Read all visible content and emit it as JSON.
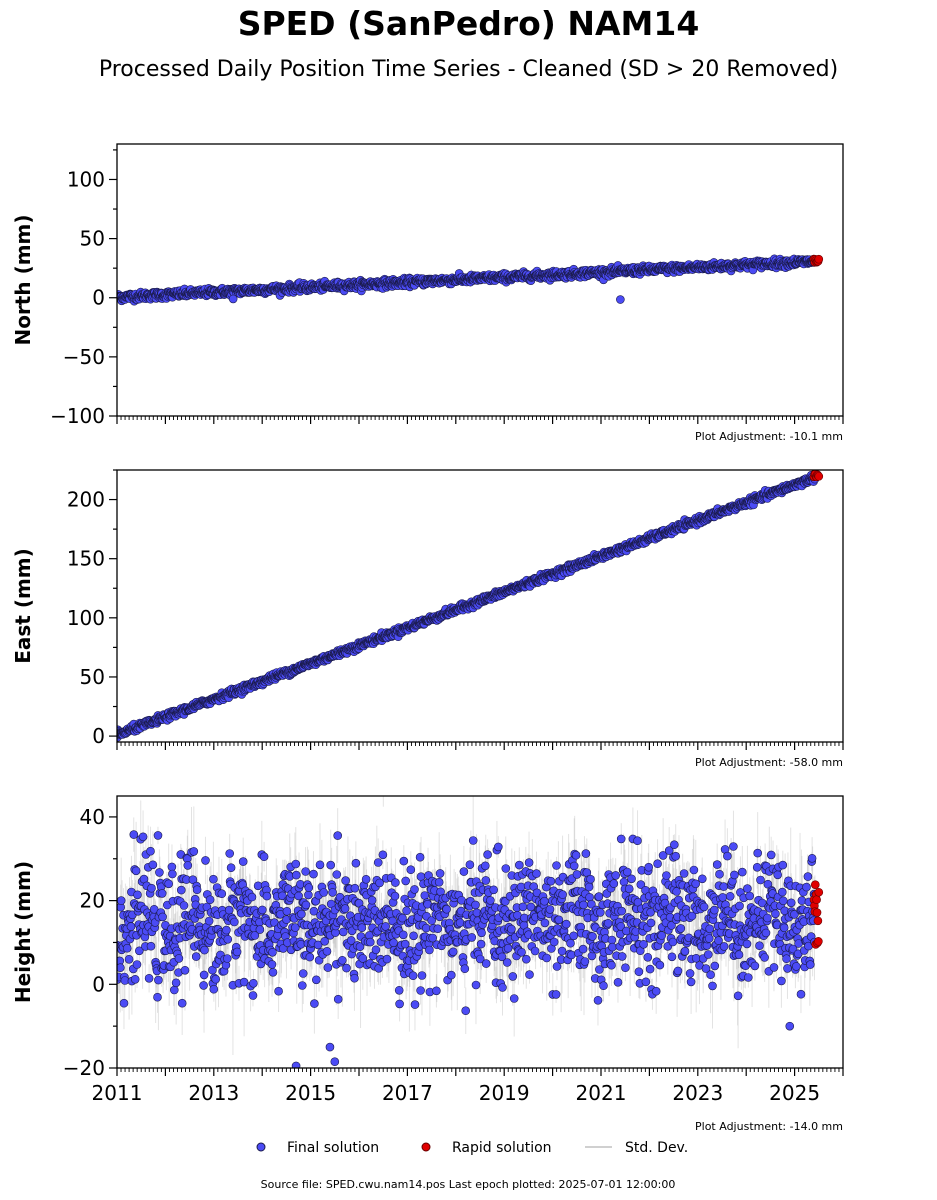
{
  "title": "SPED (SanPedro) NAM14",
  "subtitle": "Processed Daily Position Time Series - Cleaned (SD > 20 Removed)",
  "colors": {
    "final": "#4b4bf5",
    "rapid": "#e00000",
    "std": "#b0b0b0",
    "edge": "#1a1a4a"
  },
  "legend": {
    "final": "Final solution",
    "rapid": "Rapid solution",
    "std": "Std. Dev."
  },
  "footer": "Source file: SPED.cwu.nam14.pos  Last epoch plotted: 2025-07-01 12:00:00",
  "chart_data": [
    {
      "type": "scatter",
      "id": "north",
      "ylabel": "North (mm)",
      "adjustment": "Plot Adjustment: -10.1 mm",
      "xlim": [
        2011,
        2026
      ],
      "ylim": [
        -100,
        130
      ],
      "yticks": [
        -100,
        -50,
        0,
        50,
        100
      ],
      "ytick_labels": [
        "−100",
        "−50",
        "0",
        "50",
        "100"
      ],
      "trend": {
        "x": [
          2011.0,
          2025.5
        ],
        "y": [
          0.5,
          31.0
        ]
      },
      "noise_sd": 1.6,
      "std_sd": 1.5,
      "outliers": [
        [
          2013.4,
          -1.0
        ],
        [
          2021.4,
          -1.5
        ]
      ],
      "rapid": {
        "x_start": 2025.4,
        "x_end": 2025.5,
        "y": [
          30,
          33
        ]
      }
    },
    {
      "type": "scatter",
      "id": "east",
      "ylabel": "East (mm)",
      "adjustment": "Plot Adjustment: -58.0 mm",
      "xlim": [
        2011,
        2026
      ],
      "ylim": [
        -5,
        225
      ],
      "yticks": [
        0,
        50,
        100,
        150,
        200
      ],
      "ytick_labels": [
        "0",
        "50",
        "100",
        "150",
        "200"
      ],
      "trend": {
        "x": [
          2011.0,
          2025.5
        ],
        "y": [
          1.0,
          220.0
        ]
      },
      "noise_sd": 1.4,
      "std_sd": 1.3,
      "outliers": [],
      "rapid": {
        "x_start": 2025.4,
        "x_end": 2025.5,
        "y": [
          218,
          222
        ]
      }
    },
    {
      "type": "scatter",
      "id": "height",
      "ylabel": "Height (mm)",
      "adjustment": "Plot Adjustment: -14.0 mm",
      "xlim": [
        2011,
        2026
      ],
      "ylim": [
        -20,
        45
      ],
      "yticks": [
        -20,
        0,
        20,
        40
      ],
      "ytick_labels": [
        "−20",
        "0",
        "20",
        "40"
      ],
      "xticks": [
        2011,
        2013,
        2015,
        2017,
        2019,
        2021,
        2023,
        2025
      ],
      "trend": {
        "x": [
          2011.0,
          2025.5
        ],
        "y": [
          14.0,
          16.0
        ]
      },
      "noise_sd": 7.0,
      "std_sd": 5.0,
      "outliers": [
        [
          2015.4,
          -15
        ],
        [
          2015.5,
          -18.5
        ],
        [
          2014.7,
          -19.5
        ],
        [
          2024.9,
          -10
        ]
      ],
      "rapid": {
        "x_start": 2025.4,
        "x_end": 2025.5,
        "y": [
          9.5,
          24
        ]
      }
    }
  ]
}
